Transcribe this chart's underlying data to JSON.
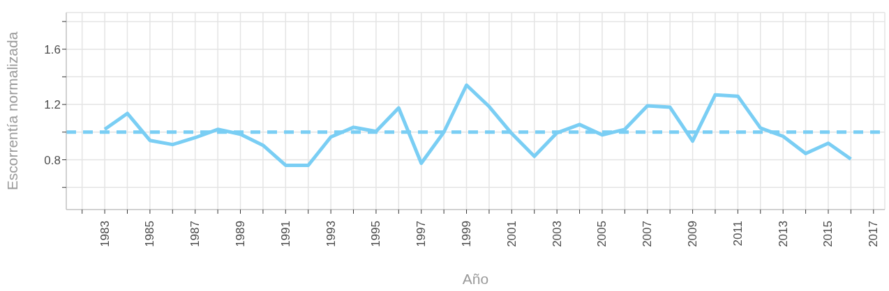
{
  "chart_data": {
    "type": "line",
    "xlabel": "Año",
    "ylabel": "Escorrentía normalizada",
    "x": [
      1983,
      1984,
      1985,
      1986,
      1987,
      1988,
      1989,
      1990,
      1991,
      1992,
      1993,
      1994,
      1995,
      1996,
      1997,
      1998,
      1999,
      2000,
      2001,
      2002,
      2003,
      2004,
      2005,
      2006,
      2007,
      2008,
      2009,
      2010,
      2011,
      2012,
      2013,
      2014,
      2015,
      2016
    ],
    "series": [
      {
        "color": "#7acef4",
        "values": [
          1.02,
          1.135,
          0.94,
          0.91,
          0.96,
          1.02,
          0.985,
          0.905,
          0.76,
          0.76,
          0.965,
          1.035,
          1.005,
          1.175,
          0.775,
          1.0,
          1.34,
          1.185,
          0.99,
          0.825,
          0.995,
          1.055,
          0.98,
          1.02,
          1.19,
          1.18,
          0.935,
          1.27,
          1.26,
          1.03,
          0.97,
          0.845,
          0.92,
          0.805
        ]
      }
    ],
    "ref_lines": [
      {
        "axis": "y",
        "value": 1.0,
        "color": "#7acef4",
        "line_style": "dashed"
      }
    ],
    "xlim": [
      1981.3,
      2017.5
    ],
    "xticks": [
      {
        "value": 1982,
        "label": null
      },
      1983,
      {
        "value": 1984,
        "label": null
      },
      1985,
      {
        "value": 1986,
        "label": null
      },
      1987,
      {
        "value": 1988,
        "label": null
      },
      1989,
      {
        "value": 1990,
        "label": null
      },
      1991,
      {
        "value": 1992,
        "label": null
      },
      1993,
      {
        "value": 1994,
        "label": null
      },
      1995,
      {
        "value": 1996,
        "label": null
      },
      1997,
      {
        "value": 1998,
        "label": null
      },
      1999,
      {
        "value": 2000,
        "label": null
      },
      2001,
      {
        "value": 2002,
        "label": null
      },
      2003,
      {
        "value": 2004,
        "label": null
      },
      2005,
      {
        "value": 2006,
        "label": null
      },
      2007,
      {
        "value": 2008,
        "label": null
      },
      2009,
      {
        "value": 2010,
        "label": null
      },
      2011,
      {
        "value": 2012,
        "label": null
      },
      2013,
      {
        "value": 2014,
        "label": null
      },
      2015,
      {
        "value": 2016,
        "label": null
      },
      2017
    ],
    "ylim": [
      0.44,
      1.865
    ],
    "yticks": [
      {
        "value": 0.6,
        "label": null
      },
      0.8,
      {
        "value": 1.0,
        "label": null
      },
      1.2,
      {
        "value": 1.4,
        "label": null
      },
      1.6,
      {
        "value": 1.8,
        "label": null
      }
    ],
    "grid": true,
    "legend": false,
    "marker": "none",
    "line_style": "solid"
  }
}
